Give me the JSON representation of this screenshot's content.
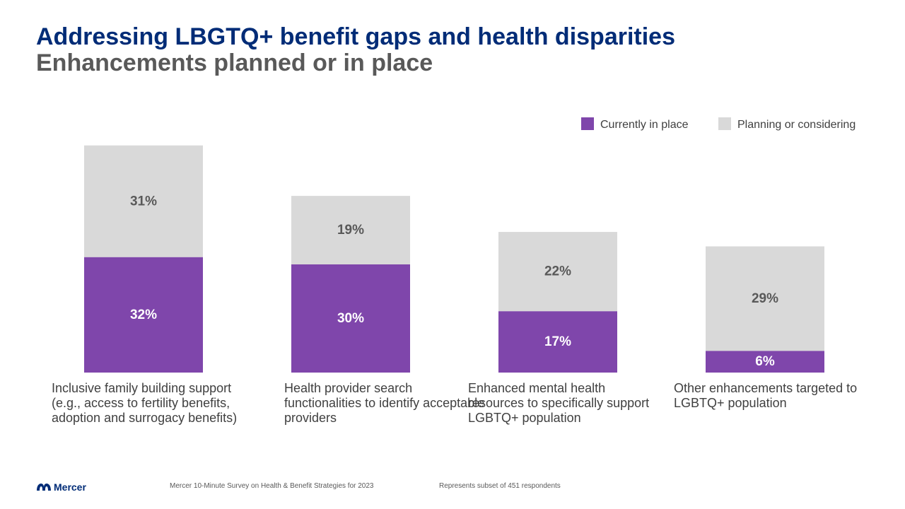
{
  "title": "Addressing LBGTQ+ benefit gaps and health disparities",
  "subtitle": "Enhancements planned or in place",
  "legend": {
    "current_label": "Currently in place",
    "planning_label": "Planning or considering"
  },
  "colors": {
    "current": "#7f46ab",
    "planning": "#d9d9d9",
    "title": "#002c77",
    "subtitle": "#595959"
  },
  "chart_data": {
    "type": "bar",
    "stacked": true,
    "categories": [
      "Inclusive family building support (e.g., access to fertility benefits, adoption and surrogacy benefits)",
      "Health provider search functionalities to identify acceptable providers",
      "Enhanced mental health resources to specifically support LGBTQ+ population",
      "Other enhancements targeted to LGBTQ+ population"
    ],
    "series": [
      {
        "name": "Currently in place",
        "values": [
          32,
          30,
          17,
          6
        ],
        "labels": [
          "32%",
          "30%",
          "17%",
          "6%"
        ]
      },
      {
        "name": "Planning or considering",
        "values": [
          31,
          19,
          22,
          29
        ],
        "labels": [
          "31%",
          "19%",
          "22%",
          "29%"
        ]
      }
    ],
    "unit": "%",
    "legend": "top-right",
    "grid": false
  },
  "footer": {
    "source": "Mercer 10-Minute Survey on Health & Benefit Strategies for 2023",
    "note": "Represents subset of 451 respondents",
    "logo_text": "Mercer"
  }
}
